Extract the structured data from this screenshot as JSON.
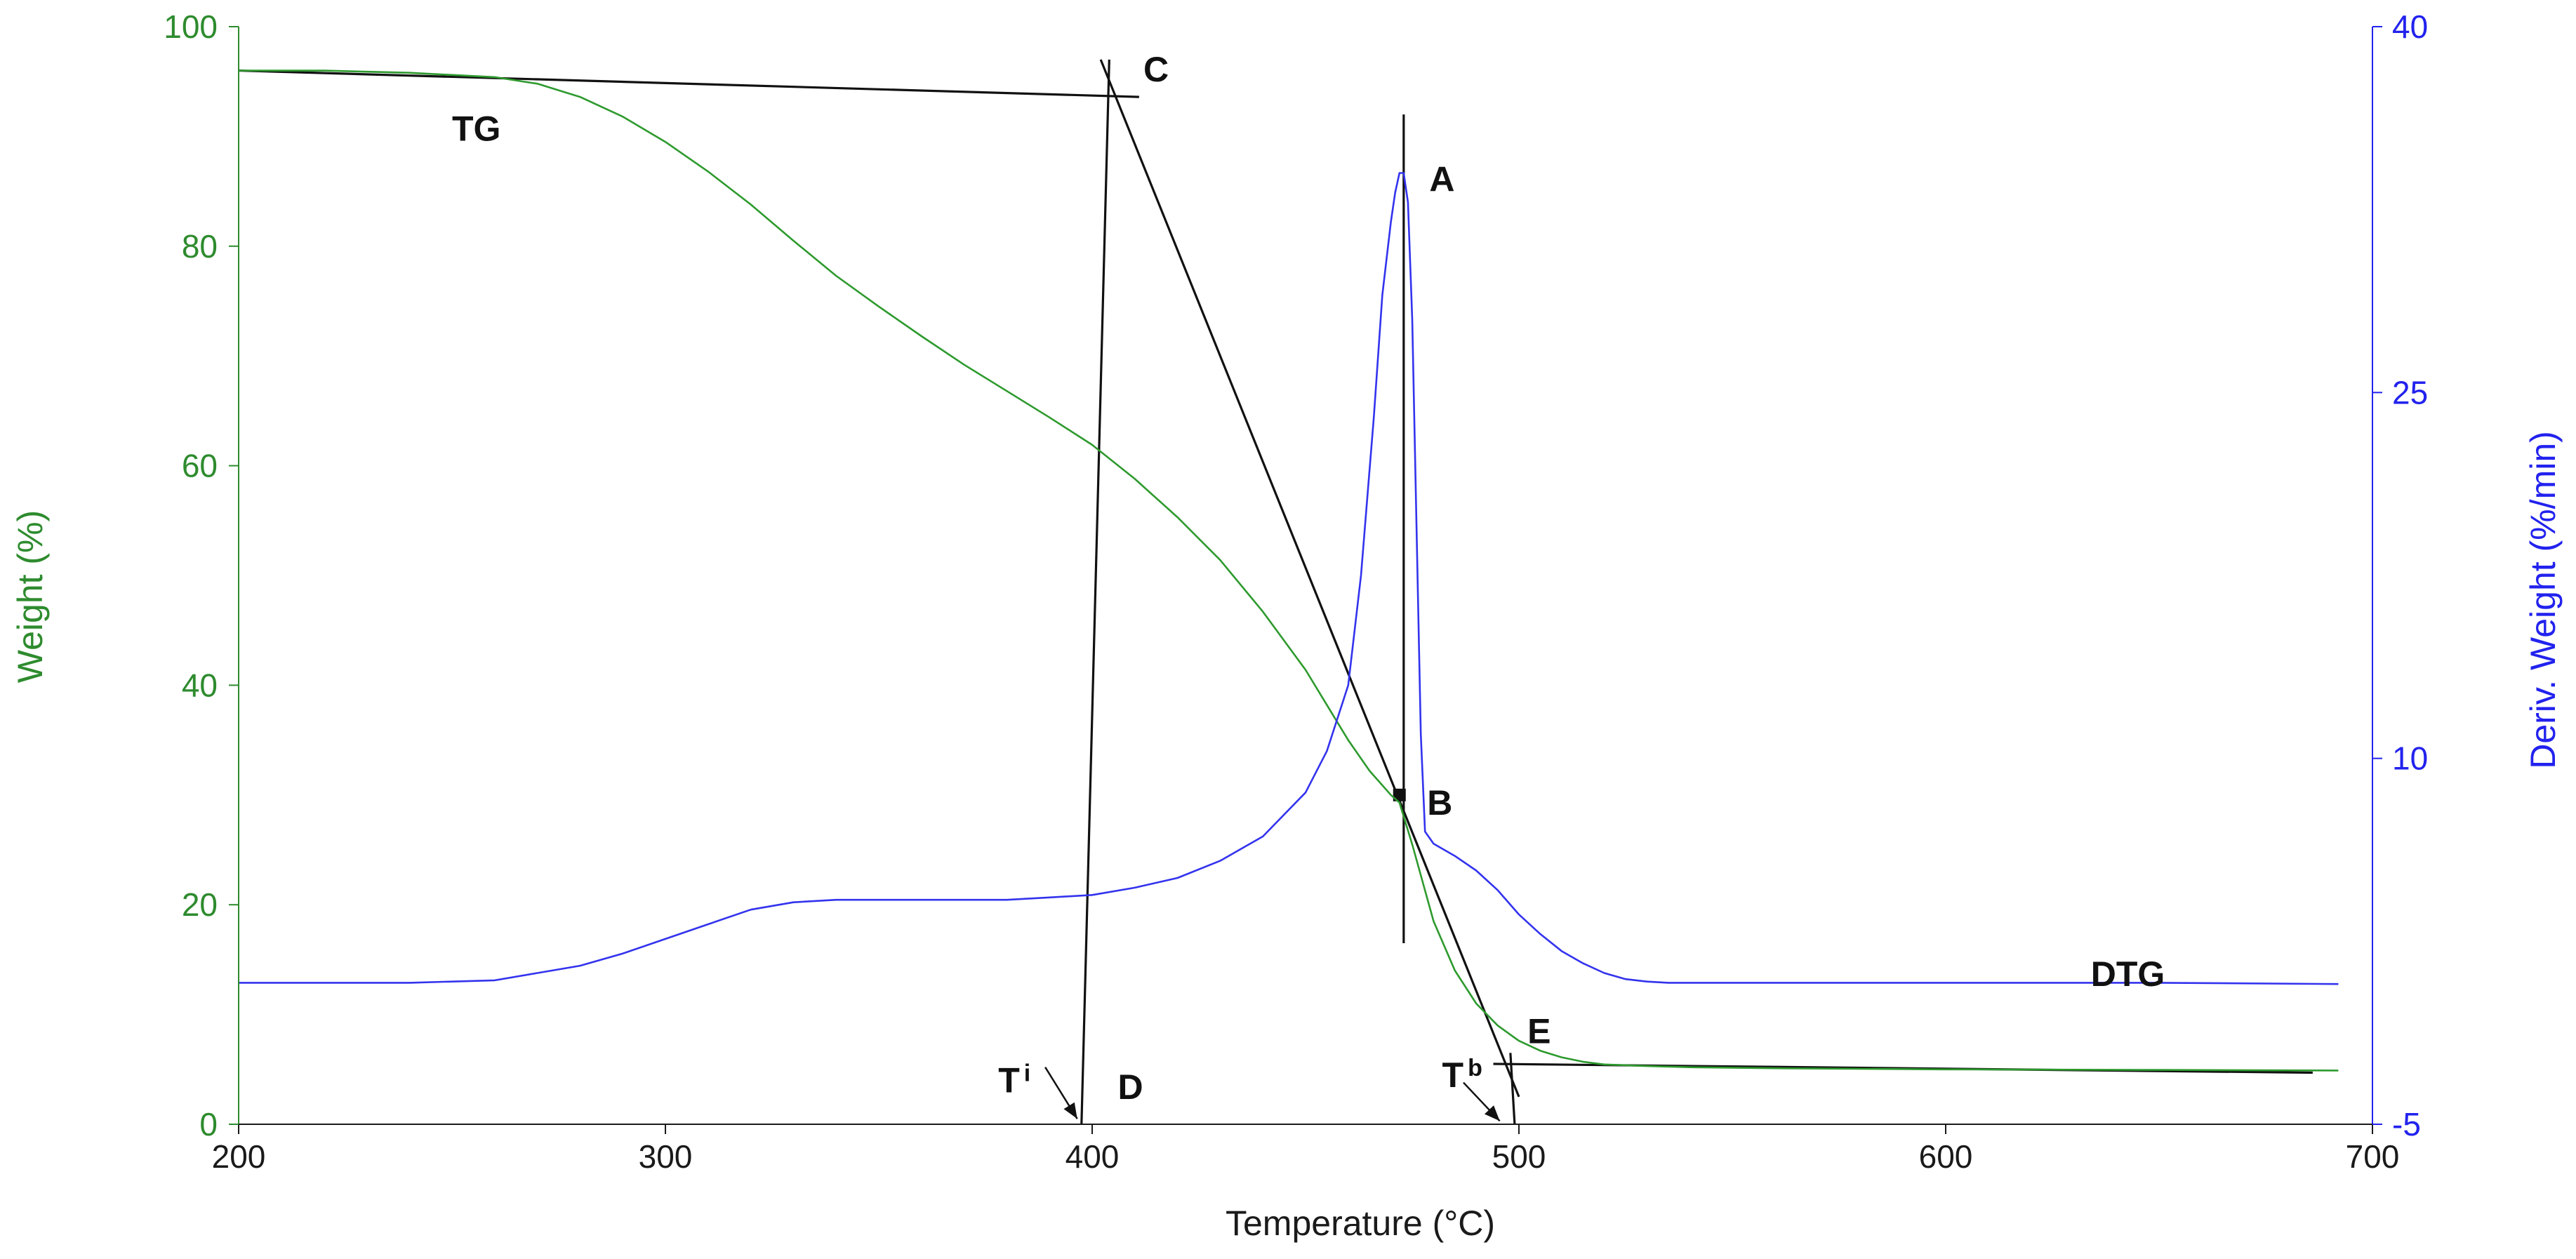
{
  "chart_data": {
    "type": "line",
    "title": "",
    "xlabel": "Temperature (°C)",
    "ylabel_left": "Weight (%)",
    "ylabel_right": "Deriv. Weight (%/min)",
    "xlim": [
      200,
      700
    ],
    "ylim_left": [
      0,
      100
    ],
    "ylim_right": [
      -5,
      40
    ],
    "x_ticks": [
      200,
      300,
      400,
      500,
      600,
      700
    ],
    "y_left_ticks": [
      0,
      20,
      40,
      60,
      80,
      100
    ],
    "y_right_ticks": [
      -5,
      10,
      25,
      40
    ],
    "grid": false,
    "series": [
      {
        "name": "TG",
        "axis": "left",
        "color": "#2e9a2e",
        "x": [
          200,
          220,
          240,
          260,
          270,
          280,
          290,
          300,
          310,
          320,
          330,
          340,
          350,
          360,
          370,
          380,
          390,
          400,
          410,
          420,
          430,
          440,
          450,
          455,
          460,
          465,
          470,
          472,
          475,
          480,
          485,
          490,
          495,
          500,
          505,
          510,
          515,
          520,
          530,
          540,
          560,
          600,
          650,
          692
        ],
        "y": [
          96,
          96,
          95.8,
          95.4,
          94.8,
          93.6,
          91.8,
          89.5,
          86.8,
          83.8,
          80.5,
          77.3,
          74.5,
          71.8,
          69.2,
          66.8,
          64.4,
          61.9,
          58.8,
          55.3,
          51.4,
          46.7,
          41.4,
          38.2,
          35,
          32.2,
          30,
          29.3,
          25.5,
          18.5,
          14,
          11,
          9,
          7.6,
          6.7,
          6.1,
          5.7,
          5.45,
          5.3,
          5.2,
          5.1,
          5,
          4.95,
          4.9
        ]
      },
      {
        "name": "DTG",
        "axis": "right",
        "color": "#3333ee",
        "x": [
          200,
          220,
          240,
          260,
          270,
          280,
          290,
          300,
          310,
          320,
          330,
          340,
          350,
          360,
          370,
          380,
          390,
          400,
          410,
          420,
          430,
          440,
          450,
          455,
          460,
          463,
          466,
          468,
          470,
          471,
          472,
          473,
          474,
          475,
          476,
          477,
          478,
          480,
          485,
          490,
          495,
          500,
          505,
          510,
          515,
          520,
          525,
          530,
          535,
          540,
          545,
          550,
          600,
          650,
          692
        ],
        "y": [
          0.8,
          0.8,
          0.8,
          0.9,
          1.2,
          1.5,
          2,
          2.6,
          3.2,
          3.8,
          4.1,
          4.2,
          4.2,
          4.2,
          4.2,
          4.2,
          4.3,
          4.4,
          4.7,
          5.1,
          5.8,
          6.8,
          8.6,
          10.3,
          13,
          17.5,
          24,
          29,
          32,
          33.2,
          34,
          34,
          32.8,
          28,
          19.5,
          11,
          7,
          6.5,
          6,
          5.4,
          4.6,
          3.6,
          2.8,
          2.1,
          1.6,
          1.2,
          0.95,
          0.85,
          0.8,
          0.8,
          0.8,
          0.8,
          0.8,
          0.8,
          0.75
        ]
      }
    ],
    "construction_lines": [
      {
        "name": "line-CE",
        "x": [
          402,
          500
        ],
        "y": [
          97,
          2.5
        ]
      },
      {
        "name": "line-CD",
        "x": [
          397.5,
          404
        ],
        "y": [
          0,
          97
        ]
      },
      {
        "name": "line-C-baseline",
        "x": [
          200,
          411
        ],
        "y": [
          96,
          93.6
        ]
      },
      {
        "name": "line-E-baseline",
        "x": [
          494,
          686
        ],
        "y": [
          5.5,
          4.7
        ]
      },
      {
        "name": "line-A-vertical",
        "x": [
          473,
          473
        ],
        "y": [
          92,
          16.5
        ]
      },
      {
        "name": "line-Tb-vertical",
        "x": [
          498,
          499
        ],
        "y": [
          6.5,
          0
        ]
      }
    ],
    "point_B": {
      "x": 472,
      "y": 30
    },
    "annotations": [
      {
        "label": "TG",
        "sub": "",
        "x": 250,
        "y": 89.6
      },
      {
        "label": "C",
        "sub": "",
        "x": 412,
        "y": 95
      },
      {
        "label": "A",
        "sub": "",
        "x": 479,
        "y": 85
      },
      {
        "label": "B",
        "sub": "",
        "x": 478.5,
        "y": 28.2
      },
      {
        "label": "DTG",
        "sub": "",
        "x": 634,
        "y": 12.6
      },
      {
        "label": "E",
        "sub": "",
        "x": 502,
        "y": 7.4
      },
      {
        "label": "D",
        "sub": "",
        "x": 406,
        "y": 2.3
      },
      {
        "label": "T",
        "sub": "i",
        "x": 378,
        "y": 2.9
      },
      {
        "label": "T",
        "sub": "b",
        "x": 482,
        "y": 3.4
      }
    ],
    "arrows": [
      {
        "name": "arrow-Ti",
        "from": [
          389,
          5.2
        ],
        "to": [
          396.5,
          0.5
        ]
      },
      {
        "name": "arrow-Tb",
        "from": [
          487,
          3.8
        ],
        "to": [
          495.5,
          0.3
        ]
      }
    ]
  }
}
